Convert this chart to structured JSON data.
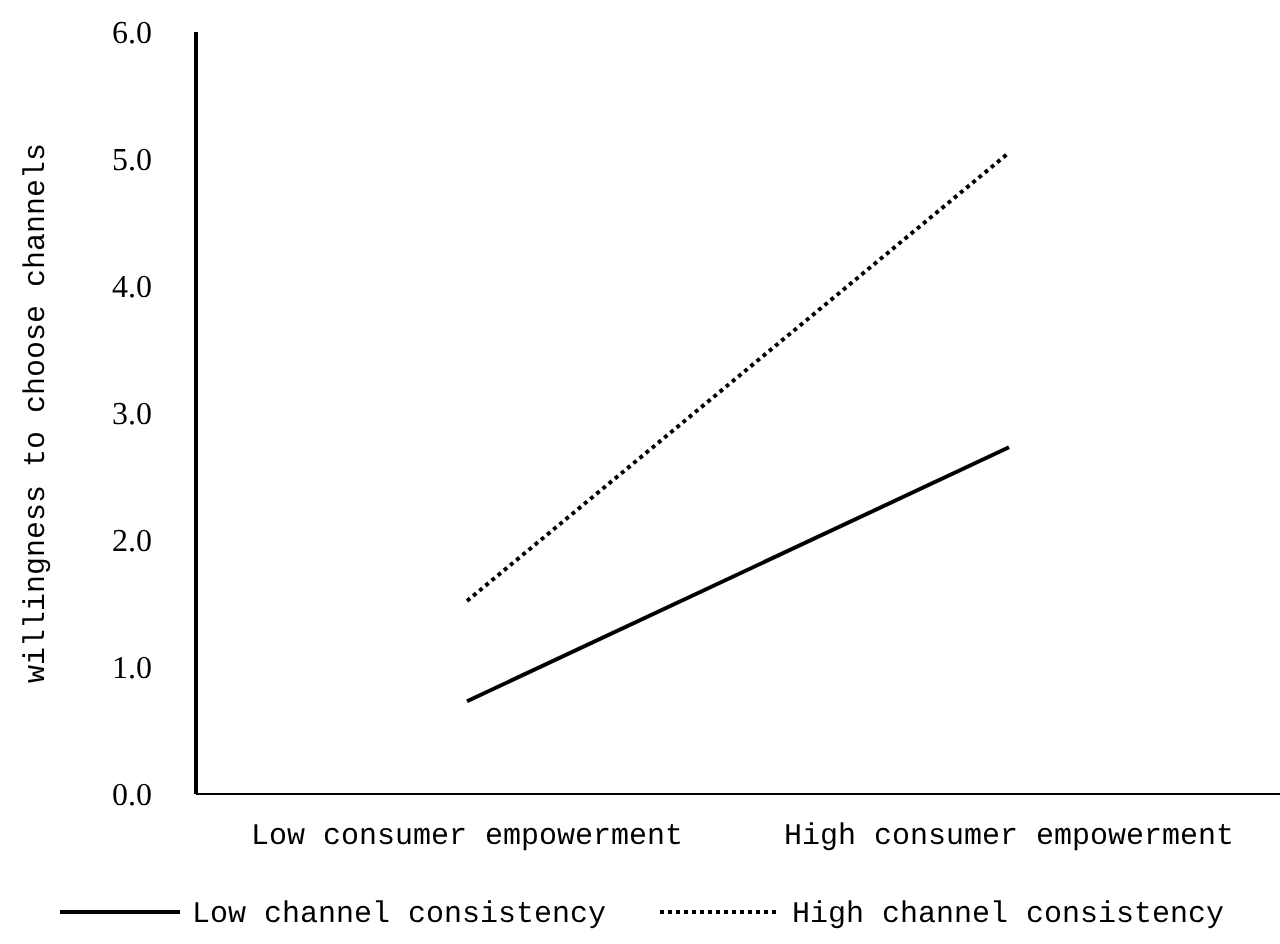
{
  "chart_data": {
    "type": "line",
    "ylabel": "willingness to choose channels",
    "categories": [
      "Low consumer empowerment",
      "High consumer empowerment"
    ],
    "series": [
      {
        "name": "Low channel consistency",
        "color": "#000000",
        "values": [
          0.73,
          2.73
        ],
        "line_style": "solid"
      },
      {
        "name": "High channel consistency",
        "color": "#000000",
        "values": [
          1.52,
          5.05
        ],
        "line_style": "dotted"
      }
    ],
    "ylim": [
      0,
      6
    ],
    "yticks": [
      {
        "value": 0,
        "label": "0.0"
      },
      {
        "value": 1,
        "label": "1.0"
      },
      {
        "value": 2,
        "label": "2.0"
      },
      {
        "value": 3,
        "label": "3.0"
      },
      {
        "value": 4,
        "label": "4.0"
      },
      {
        "value": 5,
        "label": "5.0"
      },
      {
        "value": 6,
        "label": "6.0"
      }
    ],
    "grid": false,
    "legend": "bottom",
    "marker": "none"
  }
}
